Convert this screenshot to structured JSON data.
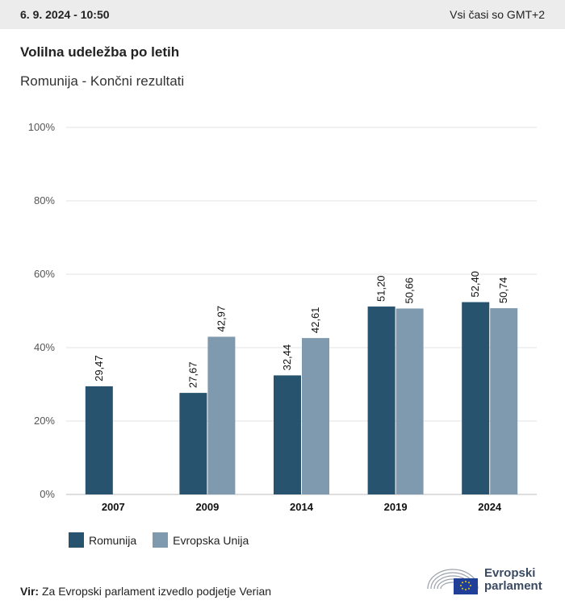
{
  "header": {
    "date": "6. 9. 2024 - 10:50",
    "timezone": "Vsi časi so GMT+2"
  },
  "title": "Volilna udeležba po letih",
  "subtitle": "Romunija - Končni rezultati",
  "colors": {
    "romunija": "#27536f",
    "eu": "#7f9aae",
    "grid": "#e3e3e3",
    "axis": "#bdbdbd"
  },
  "chart_data": {
    "type": "bar",
    "categories": [
      "2007",
      "2009",
      "2014",
      "2019",
      "2024"
    ],
    "series": [
      {
        "name": "Romunija",
        "values": [
          29.47,
          27.67,
          32.44,
          51.2,
          52.4
        ],
        "labels": [
          "29,47",
          "27,67",
          "32,44",
          "51,20",
          "52,40"
        ]
      },
      {
        "name": "Evropska Unija",
        "values": [
          null,
          42.97,
          42.61,
          50.66,
          50.74
        ],
        "labels": [
          "",
          "42,97",
          "42,61",
          "50,66",
          "50,74"
        ]
      }
    ],
    "yticks": [
      "0%",
      "20%",
      "40%",
      "60%",
      "80%",
      "100%"
    ],
    "ylim": [
      0,
      100
    ],
    "grid": true,
    "legend": "bottom-left"
  },
  "legend": {
    "items": [
      "Romunija",
      "Evropska Unija"
    ]
  },
  "source": {
    "label": "Vir:",
    "text": "Za Evropski parlament izvedlo podjetje Verian"
  },
  "logo": {
    "line1": "Evropski",
    "line2": "parlament"
  }
}
